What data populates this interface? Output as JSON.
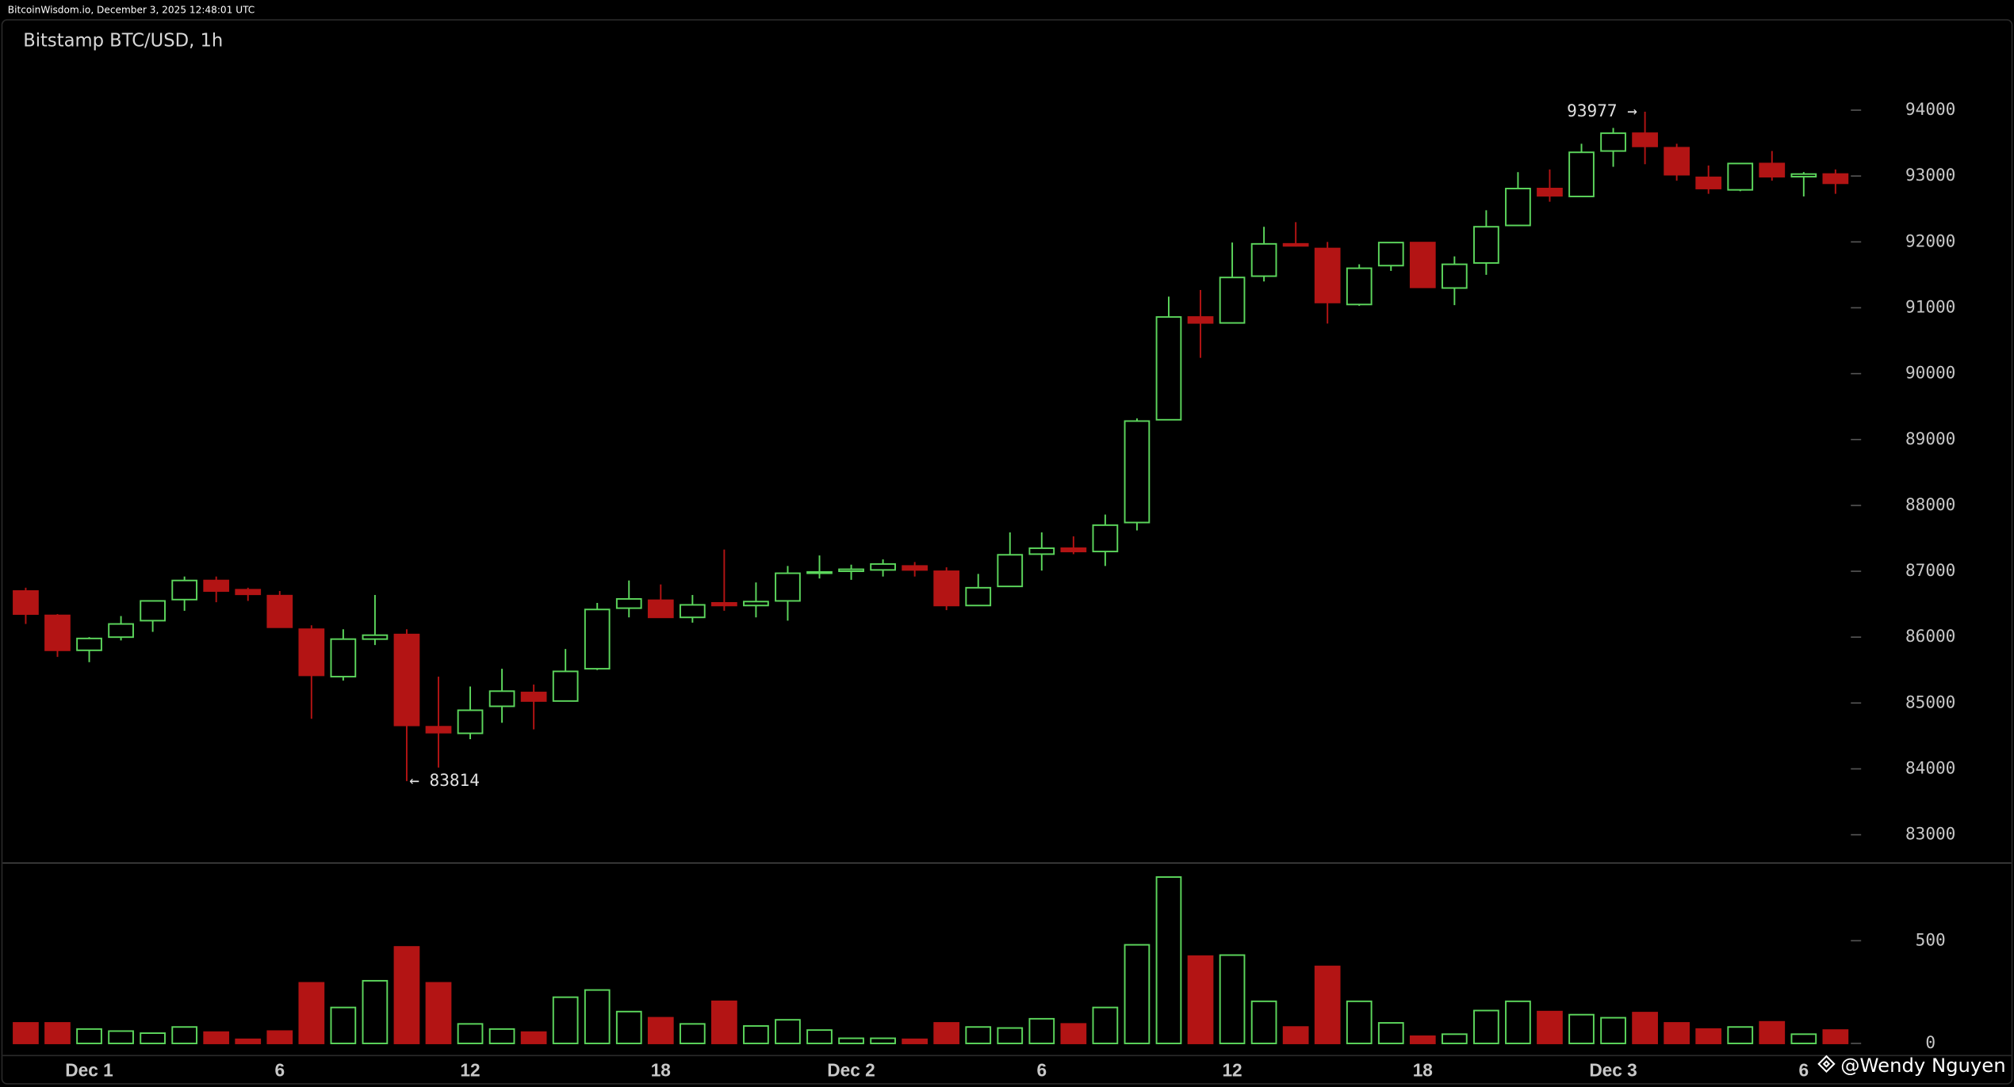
{
  "chart_data": {
    "type": "candlestick",
    "source": "BitcoinWisdom.io, December 3, 2025 12:48:01 UTC",
    "title": "Bitstamp BTC/USD, 1h",
    "watermark": "@Wendy Nguyen",
    "categories": [
      null,
      null,
      "Dec 1",
      null,
      null,
      null,
      null,
      null,
      "6",
      null,
      null,
      null,
      null,
      null,
      "12",
      null,
      null,
      null,
      null,
      null,
      "18",
      null,
      null,
      null,
      null,
      null,
      "Dec 2",
      null,
      null,
      null,
      null,
      null,
      "6",
      null,
      null,
      null,
      null,
      null,
      "12",
      null,
      null,
      null,
      null,
      null,
      "18",
      null,
      null,
      null,
      null,
      null,
      "Dec 3",
      null,
      null,
      null,
      null,
      null,
      "6",
      null
    ],
    "open": [
      86700,
      86330,
      85800,
      86000,
      86250,
      86570,
      86860,
      86720,
      86630,
      86120,
      85400,
      85970,
      86040,
      84640,
      84540,
      84950,
      85160,
      85030,
      85520,
      86440,
      86560,
      86300,
      86520,
      86480,
      86550,
      86970,
      87000,
      87020,
      87080,
      87000,
      86480,
      86770,
      87260,
      87350,
      87300,
      87740,
      89300,
      90860,
      90770,
      91480,
      91970,
      91900,
      91050,
      91640,
      91990,
      91300,
      91680,
      92250,
      92810,
      92690,
      93380,
      93650,
      93430,
      92980,
      92790,
      93190,
      92990,
      93030
    ],
    "high": [
      86750,
      86350,
      86000,
      86320,
      86560,
      86920,
      86920,
      86750,
      86700,
      86180,
      86120,
      86640,
      86120,
      85400,
      85250,
      85520,
      85280,
      85820,
      86520,
      86860,
      86800,
      86640,
      87330,
      86830,
      87080,
      87240,
      87100,
      87180,
      87140,
      87060,
      86960,
      87590,
      87590,
      87530,
      87860,
      89320,
      91170,
      91270,
      91990,
      92230,
      92300,
      92000,
      91660,
      91990,
      91990,
      91780,
      92480,
      93060,
      93100,
      93490,
      93730,
      93977,
      93490,
      93160,
      93200,
      93380,
      93060,
      93100
    ],
    "low": [
      86200,
      85700,
      85620,
      85950,
      86080,
      86400,
      86530,
      86550,
      86150,
      84760,
      85340,
      85880,
      83814,
      84020,
      84450,
      84700,
      84600,
      85030,
      85500,
      86300,
      86300,
      86220,
      86400,
      86300,
      86250,
      86890,
      86870,
      86920,
      86920,
      86410,
      86480,
      86770,
      87010,
      87260,
      87080,
      87620,
      89300,
      90240,
      90770,
      91400,
      91930,
      90760,
      91030,
      91560,
      91300,
      91040,
      91500,
      92250,
      92610,
      92690,
      93140,
      93180,
      92930,
      92730,
      92770,
      92930,
      92690,
      92730
    ],
    "close": [
      86350,
      85800,
      85980,
      86200,
      86550,
      86860,
      86700,
      86650,
      86150,
      85420,
      85970,
      86030,
      84660,
      84550,
      84890,
      85180,
      85030,
      85480,
      86420,
      86580,
      86300,
      86490,
      86480,
      86540,
      86970,
      86990,
      87030,
      87110,
      87020,
      86480,
      86750,
      87250,
      87350,
      87300,
      87700,
      89280,
      90860,
      90770,
      91460,
      91970,
      91940,
      91080,
      91600,
      91990,
      91310,
      91660,
      92230,
      92810,
      92700,
      93360,
      93650,
      93450,
      93020,
      92810,
      93190,
      92990,
      93030,
      92890
    ],
    "volume": [
      100,
      100,
      70,
      60,
      50,
      80,
      55,
      20,
      60,
      295,
      175,
      305,
      470,
      295,
      95,
      70,
      55,
      225,
      260,
      155,
      125,
      95,
      205,
      85,
      115,
      65,
      25,
      25,
      20,
      100,
      80,
      75,
      120,
      95,
      175,
      480,
      810,
      425,
      430,
      205,
      80,
      375,
      205,
      100,
      35,
      45,
      160,
      205,
      155,
      140,
      125,
      150,
      100,
      70,
      80,
      105,
      45,
      65
    ],
    "high_labels": [
      null,
      null,
      null,
      null,
      null,
      null,
      null,
      null,
      null,
      null,
      null,
      null,
      null,
      null,
      null,
      null,
      null,
      null,
      null,
      null,
      null,
      null,
      null,
      null,
      null,
      null,
      null,
      null,
      null,
      null,
      null,
      null,
      null,
      null,
      null,
      null,
      null,
      null,
      null,
      null,
      null,
      null,
      null,
      null,
      null,
      null,
      null,
      null,
      null,
      null,
      null,
      "93977 →",
      null,
      null,
      null,
      null,
      null,
      null
    ],
    "low_labels": [
      null,
      null,
      null,
      null,
      null,
      null,
      null,
      null,
      null,
      null,
      null,
      null,
      "← 83814",
      null,
      null,
      null,
      null,
      null,
      null,
      null,
      null,
      null,
      null,
      null,
      null,
      null,
      null,
      null,
      null,
      null,
      null,
      null,
      null,
      null,
      null,
      null,
      null,
      null,
      null,
      null,
      null,
      null,
      null,
      null,
      null,
      null,
      null,
      null,
      null,
      null,
      null,
      null,
      null,
      null,
      null,
      null,
      null,
      null
    ],
    "ylim": [
      82580,
      95380
    ],
    "yticks": [
      83000,
      84000,
      85000,
      86000,
      87000,
      88000,
      89000,
      90000,
      91000,
      92000,
      93000,
      94000
    ],
    "volume_ylim": [
      -56,
      875
    ],
    "volume_yticks": [
      0,
      500
    ],
    "up_color": "#5cd65c",
    "down_color": "#b31414"
  }
}
